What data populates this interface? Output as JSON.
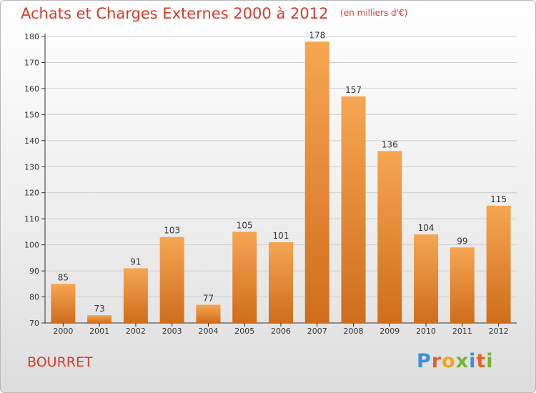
{
  "header": {
    "title": "Achats et Charges Externes 2000 à 2012",
    "subtitle": "(en milliers d'€)"
  },
  "footer": {
    "commune": "BOURRET",
    "logo_text": "Proxiti",
    "logo_colors": [
      "#3d8fd6",
      "#e8612c",
      "#f2a51f",
      "#74b72e",
      "#3d8fd6",
      "#e8612c",
      "#74b72e"
    ]
  },
  "colors": {
    "accent": "#d63a2a",
    "bar_top": "#f6a652",
    "bar_bottom": "#cf6d1c",
    "axis": "#333333",
    "grid": "#cfcfcf"
  },
  "chart_data": {
    "type": "bar",
    "title": "Achats et Charges Externes 2000 à 2012",
    "subtitle": "(en milliers d'€)",
    "xlabel": "",
    "ylabel": "",
    "categories": [
      "2000",
      "2001",
      "2002",
      "2003",
      "2004",
      "2005",
      "2006",
      "2007",
      "2008",
      "2009",
      "2010",
      "2011",
      "2012"
    ],
    "values": [
      85,
      73,
      91,
      103,
      77,
      105,
      101,
      178,
      157,
      136,
      104,
      99,
      115
    ],
    "ylim": [
      70,
      180
    ],
    "yticks": [
      70,
      80,
      90,
      100,
      110,
      120,
      130,
      140,
      150,
      160,
      170,
      180
    ],
    "grid": true,
    "legend": "none",
    "data_labels": true
  }
}
